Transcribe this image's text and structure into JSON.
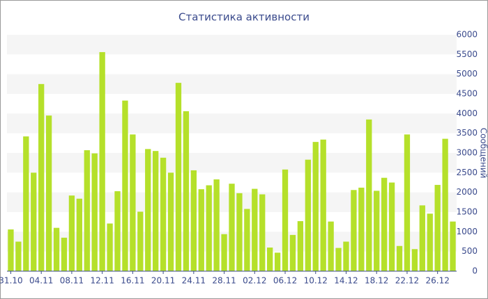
{
  "chart_data": {
    "type": "bar",
    "title": "Статистика активности",
    "y_label": "Сообщений",
    "color": "#b5e02a",
    "grid": true,
    "axis_side": "right",
    "categories": [
      "31.10",
      null,
      null,
      null,
      "04.11",
      null,
      null,
      null,
      "08.11",
      null,
      null,
      null,
      "12.11",
      null,
      null,
      null,
      "16.11",
      null,
      null,
      null,
      "20.11",
      null,
      null,
      null,
      "24.11",
      null,
      null,
      null,
      "28.11",
      null,
      null,
      null,
      "02.12",
      null,
      null,
      null,
      "06.12",
      null,
      null,
      null,
      "10.12",
      null,
      null,
      null,
      "14.12",
      null,
      null,
      null,
      "18.12",
      null,
      null,
      null,
      "22.12",
      null,
      null,
      null,
      "26.12",
      null,
      null
    ],
    "values": [
      1060,
      750,
      3420,
      2500,
      4750,
      3950,
      1100,
      850,
      1920,
      1840,
      3070,
      2990,
      5560,
      1210,
      2030,
      4330,
      3470,
      1510,
      3100,
      3050,
      2880,
      2500,
      4780,
      4060,
      2560,
      2080,
      2180,
      2330,
      940,
      2220,
      1980,
      1580,
      2090,
      1950,
      600,
      470,
      2580,
      920,
      1270,
      2830,
      3280,
      3340,
      1260,
      590,
      750,
      2060,
      2120,
      3850,
      2040,
      2370,
      2250,
      640,
      3470,
      560,
      1670,
      1460,
      2190,
      3360,
      1260
    ],
    "ylim": [
      0,
      6000
    ],
    "yticks": [
      0,
      500,
      1000,
      1500,
      2000,
      2500,
      3000,
      3500,
      4000,
      4500,
      5000,
      5500,
      6000
    ]
  }
}
